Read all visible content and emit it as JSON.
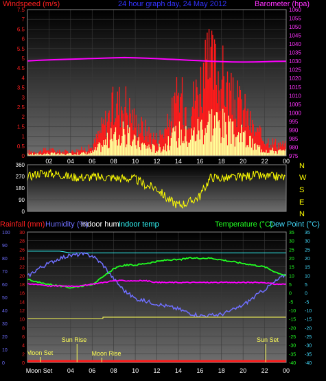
{
  "header": {
    "left_label": "Windspeed (m/s)",
    "center_title": "24 hour graph day,  24 May 2012",
    "right_label": "Barometer (hpa)"
  },
  "lower_header": {
    "rainfall": "Rainfall (mm)",
    "humidity": "Humidity (%)",
    "indoor_hum": "Indoor hum",
    "indoor_temp": "Indoor temp",
    "temperature": "Temperature (°C)",
    "dew_point": "Dew Point (°C)"
  },
  "colors": {
    "wind_gust": "#ff1a1a",
    "wind_avg": "#ffff99",
    "barometer": "#ff00ff",
    "direction": "#ffff00",
    "rainfall": "#ff1a1a",
    "humidity": "#6f6fff",
    "indoor_hum": "#ffffff",
    "indoor_temp": "#33ffff",
    "temperature": "#22ff22",
    "dew_point": "#44ddff",
    "rain_line": "#ffff55"
  },
  "chart_data": [
    {
      "type": "line",
      "name": "wind-barometer",
      "x_hours": [
        0,
        1,
        2,
        3,
        4,
        5,
        6,
        7,
        8,
        9,
        10,
        11,
        12,
        13,
        14,
        15,
        16,
        17,
        18,
        19,
        20,
        21,
        22,
        23,
        24
      ],
      "x_tick_labels": [
        "02",
        "04",
        "06",
        "08",
        "10",
        "12",
        "14",
        "16",
        "18",
        "20",
        "22",
        "00"
      ],
      "series": [
        {
          "name": "Windspeed",
          "axis": "left",
          "values": [
            0.2,
            0.2,
            0.3,
            0.2,
            0.2,
            0.3,
            0.4,
            1.4,
            2.3,
            2.6,
            1.6,
            1.2,
            0.8,
            1.4,
            2.8,
            2.2,
            3.4,
            4.3,
            3.8,
            2.6,
            2.3,
            1.2,
            0.8,
            0.6,
            0.5
          ]
        },
        {
          "name": "Barometer",
          "axis": "right",
          "values": [
            1030.2,
            1030.5,
            1030.8,
            1031.0,
            1031.2,
            1031.4,
            1031.6,
            1031.8,
            1032.0,
            1032.1,
            1032.0,
            1031.8,
            1031.5,
            1031.2,
            1030.9,
            1030.6,
            1030.3,
            1030.0,
            1029.8,
            1029.6,
            1029.5,
            1029.6,
            1029.7,
            1029.9,
            1030.0
          ]
        }
      ],
      "left_ticks": [
        "0",
        "0.5",
        "1",
        "1.5",
        "2",
        "2.5",
        "3",
        "3.5",
        "4",
        "4.5",
        "5",
        "5.5",
        "6",
        "6.5",
        "7",
        "7.5"
      ],
      "right_ticks": [
        "975",
        "980",
        "985",
        "990",
        "995",
        "1000",
        "1005",
        "1010",
        "1015",
        "1020",
        "1025",
        "1030",
        "1035",
        "1040",
        "1045",
        "1050",
        "1055",
        "1060"
      ],
      "ylim_left": [
        0,
        7.5
      ],
      "ylim_right": [
        975,
        1060
      ]
    },
    {
      "type": "line",
      "name": "wind-direction",
      "x_hours": [
        0,
        1,
        2,
        3,
        4,
        5,
        6,
        7,
        8,
        9,
        10,
        11,
        12,
        13,
        14,
        15,
        16,
        17,
        18,
        19,
        20,
        21,
        22,
        23,
        24
      ],
      "values": [
        265,
        295,
        295,
        285,
        265,
        265,
        265,
        265,
        260,
        255,
        250,
        200,
        180,
        95,
        50,
        70,
        120,
        265,
        255,
        260,
        265,
        280,
        265,
        270,
        260
      ],
      "left_ticks": [
        "0",
        "90",
        "180",
        "270",
        "360"
      ],
      "right_ticks": [
        "N",
        "W",
        "S",
        "E",
        "N"
      ],
      "ylim": [
        0,
        360
      ]
    },
    {
      "type": "line",
      "name": "temperature-humidity",
      "x_hours": [
        0,
        1,
        2,
        3,
        4,
        5,
        6,
        7,
        8,
        9,
        10,
        11,
        12,
        13,
        14,
        15,
        16,
        17,
        18,
        19,
        20,
        21,
        22,
        23,
        24
      ],
      "series": [
        {
          "name": "Humidity",
          "values": [
            66,
            72,
            76,
            80,
            82,
            83,
            82,
            75,
            64,
            55,
            49,
            47,
            45,
            43,
            41,
            38,
            36,
            36,
            37,
            40,
            44,
            50,
            56,
            62,
            68
          ]
        },
        {
          "name": "Temperature",
          "values": [
            8,
            6,
            5,
            4,
            3,
            4,
            5,
            9,
            14,
            16,
            16,
            17,
            18,
            19,
            19,
            20,
            20,
            20,
            19,
            18,
            17,
            16,
            15,
            12,
            10
          ]
        },
        {
          "name": "Dew Point",
          "values": [
            5,
            5,
            4,
            4,
            4,
            4,
            5,
            6,
            7,
            7,
            7,
            7,
            6,
            6,
            6,
            6,
            6,
            6,
            6,
            6,
            6,
            6,
            6,
            5,
            5
          ]
        },
        {
          "name": "Indoor temp",
          "values": [
            24,
            24,
            24,
            24,
            23,
            23,
            23,
            23,
            23,
            23,
            23,
            23,
            23,
            23,
            23,
            23,
            23,
            23,
            23,
            23,
            23,
            23,
            23,
            23,
            23
          ]
        },
        {
          "name": "Rainfall",
          "values": [
            0,
            0,
            0,
            0,
            0,
            0,
            0,
            0,
            0,
            0,
            0,
            0,
            0,
            0,
            0,
            0,
            0,
            0,
            0,
            0,
            0,
            0,
            0,
            0,
            0
          ]
        }
      ],
      "annotations": [
        "Moon Set",
        "Sun Rise",
        "Moon Rise",
        "Sun Set"
      ],
      "x_tick_labels": [
        "Moon Set",
        "04",
        "06",
        "08",
        "10",
        "12",
        "14",
        "16",
        "18",
        "20",
        "22",
        "00"
      ],
      "rain_ticks": [
        "0",
        "2",
        "4",
        "6",
        "8",
        "10",
        "12",
        "14",
        "16",
        "18",
        "20",
        "22",
        "24",
        "26",
        "28",
        "30"
      ],
      "hum_ticks": [
        "0",
        "10",
        "20",
        "30",
        "40",
        "50",
        "60",
        "70",
        "80",
        "90",
        "100"
      ],
      "temp_ticks": [
        "-40",
        "-35",
        "-30",
        "-25",
        "-20",
        "-15",
        "-10",
        "-5",
        "0",
        "5",
        "10",
        "15",
        "20",
        "25",
        "30",
        "35"
      ],
      "temp_ticks2": [
        "-40",
        "-35",
        "-30",
        "-25",
        "-20",
        "-15",
        "-10",
        "-5",
        "0",
        "5",
        "10",
        "15",
        "20",
        "25",
        "30",
        "35"
      ]
    }
  ]
}
